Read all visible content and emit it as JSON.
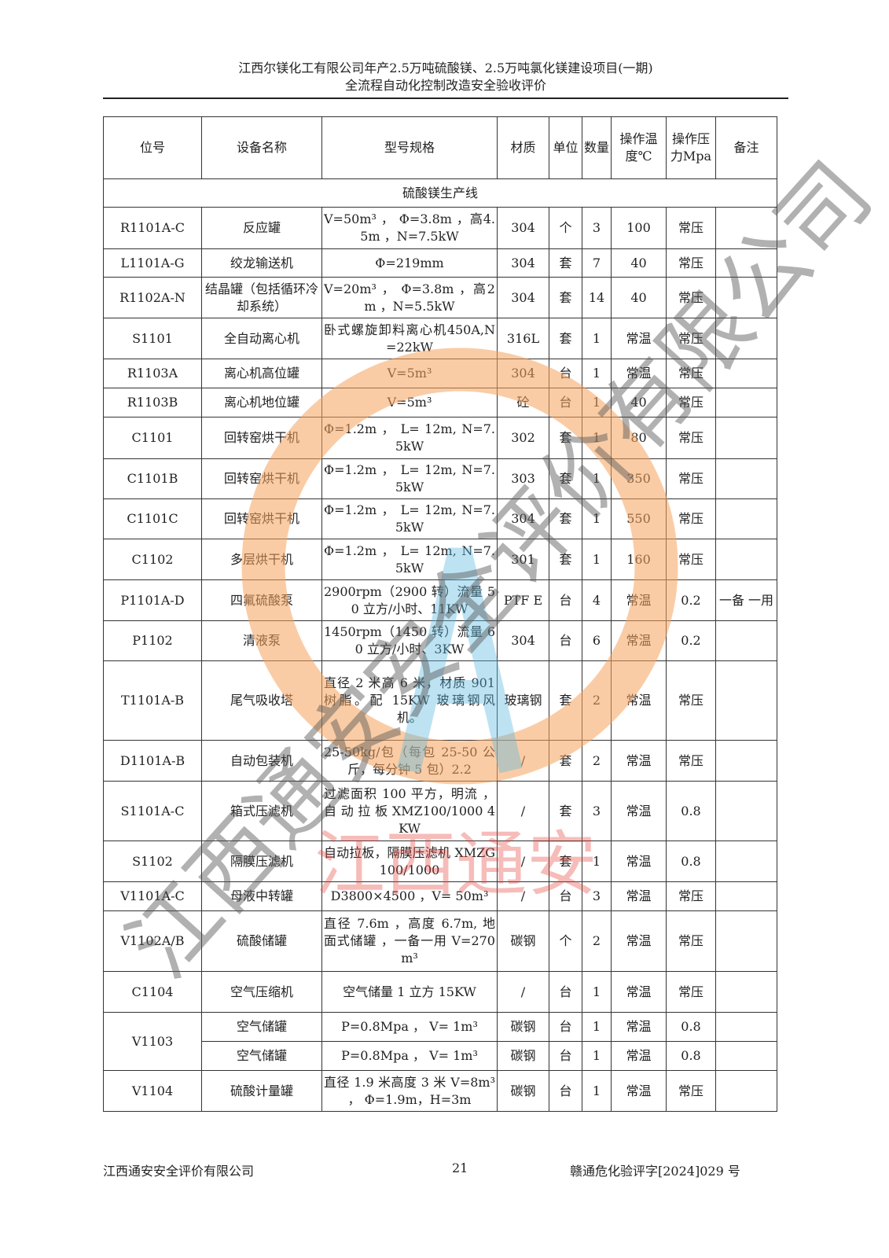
{
  "header": {
    "line1": "江西尔镁化工有限公司年产2.5万吨硫酸镁、2.5万吨氯化镁建设项目(一期)",
    "line2": "全流程自动化控制改造安全验收评价"
  },
  "table": {
    "columns": [
      "位号",
      "设备名称",
      "型号规格",
      "材质",
      "单位",
      "数量",
      "操作温度℃",
      "操作压力Mpa",
      "备注"
    ],
    "section": "硫酸镁生产线",
    "rows": [
      {
        "id": "R1101A-C",
        "name": "反应罐",
        "spec": "V=50m³ ， Φ=3.8m ，高4.5m ，N=7.5kW",
        "mat": "304",
        "unit": "个",
        "qty": "3",
        "temp": "100",
        "press": "常压",
        "note": ""
      },
      {
        "id": "L1101A-G",
        "name": "绞龙输送机",
        "spec": "Φ=219mm",
        "mat": "304",
        "unit": "套",
        "qty": "7",
        "temp": "40",
        "press": "常压",
        "note": ""
      },
      {
        "id": "R1102A-N",
        "name": "结晶罐（包括循环冷却系统）",
        "spec": "V=20m³ ， Φ=3.8m ，高2m ，N=5.5kW",
        "mat": "304",
        "unit": "套",
        "qty": "14",
        "temp": "40",
        "press": "常压",
        "note": ""
      },
      {
        "id": "S1101",
        "name": "全自动离心机",
        "spec": "卧式螺旋卸料离心机450A,N=22kW",
        "mat": "316L",
        "unit": "套",
        "qty": "1",
        "temp": "常温",
        "press": "常压",
        "note": ""
      },
      {
        "id": "R1103A",
        "name": "离心机高位罐",
        "spec": "V=5m³",
        "mat": "304",
        "unit": "台",
        "qty": "1",
        "temp": "常温",
        "press": "常压",
        "note": ""
      },
      {
        "id": "R1103B",
        "name": "离心机地位罐",
        "spec": "V=5m³",
        "mat": "砼",
        "unit": "台",
        "qty": "1",
        "temp": "40",
        "press": "常压",
        "note": ""
      },
      {
        "id": "C1101",
        "name": "回转窑烘干机",
        "spec": "Φ=1.2m ， L= 12m, N=7.5kW",
        "mat": "302",
        "unit": "套",
        "qty": "1",
        "temp": "80",
        "press": "常压",
        "note": ""
      },
      {
        "id": "C1101B",
        "name": "回转窑烘干机",
        "spec": "Φ=1.2m ， L= 12m, N=7.5kW",
        "mat": "303",
        "unit": "套",
        "qty": "1",
        "temp": "350",
        "press": "常压",
        "note": ""
      },
      {
        "id": "C1101C",
        "name": "回转窑烘干机",
        "spec": "Φ=1.2m ， L= 12m, N=7.5kW",
        "mat": "304",
        "unit": "套",
        "qty": "1",
        "temp": "550",
        "press": "常压",
        "note": ""
      },
      {
        "id": "C1102",
        "name": "多层烘干机",
        "spec": "Φ=1.2m ， L= 12m, N=7.5kW",
        "mat": "301",
        "unit": "套",
        "qty": "1",
        "temp": "160",
        "press": "常压",
        "note": ""
      },
      {
        "id": "P1101A-D",
        "name": "四氟硫酸泵",
        "spec": "2900rpm（2900 转）流量 50 立方/小时、11KW",
        "mat": "PTF E",
        "unit": "台",
        "qty": "4",
        "temp": "常温",
        "press": "0.2",
        "note": "一备 一用"
      },
      {
        "id": "P1102",
        "name": "清液泵",
        "spec": "1450rpm（1450 转）流量 60 立方/小时、3KW",
        "mat": "304",
        "unit": "台",
        "qty": "6",
        "temp": "常温",
        "press": "0.2",
        "note": ""
      },
      {
        "id": "T1101A-B",
        "name": "尾气吸收塔",
        "spec": "直径 2 米高 6 米，材质 901 树脂。配 15KW 玻璃钢风机。",
        "mat": "玻璃钢",
        "unit": "套",
        "qty": "2",
        "temp": "常温",
        "press": "常压",
        "note": ""
      },
      {
        "id": "D1101A-B",
        "name": "自动包装机",
        "spec": "25-50kg/包（每包 25-50 公斤，每分钟 5 包）2.2",
        "mat": "/",
        "unit": "套",
        "qty": "2",
        "temp": "常温",
        "press": "常压",
        "note": ""
      },
      {
        "id": "S1101A-C",
        "name": "箱式压滤机",
        "spec": "过滤面积 100 平方，明流 ， 自 动 拉 板 XMZ100/1000 4KW",
        "mat": "/",
        "unit": "套",
        "qty": "3",
        "temp": "常温",
        "press": "0.8",
        "note": ""
      },
      {
        "id": "S1102",
        "name": "隔膜压滤机",
        "spec": "自动拉板，隔膜压滤机 XMZG100/1000",
        "mat": "/",
        "unit": "套",
        "qty": "1",
        "temp": "常温",
        "press": "0.8",
        "note": ""
      },
      {
        "id": "V1101A-C",
        "name": "母液中转罐",
        "spec": "D3800×4500 ，V= 50m³",
        "mat": "/",
        "unit": "台",
        "qty": "3",
        "temp": "常温",
        "press": "常压",
        "note": ""
      },
      {
        "id": "V1102A/B",
        "name": "硫酸储罐",
        "spec": "直径 7.6m ，高度 6.7m, 地面式储罐 ，一备一用 V=270 m³",
        "mat": "碳钢",
        "unit": "个",
        "qty": "2",
        "temp": "常温",
        "press": "常压",
        "note": ""
      },
      {
        "id": "C1104",
        "name": "空气压缩机",
        "spec": "空气储量 1 立方 15KW",
        "mat": "/",
        "unit": "台",
        "qty": "1",
        "temp": "常温",
        "press": "常压",
        "note": ""
      },
      {
        "id": "V1103",
        "name": "空气储罐",
        "spec": "P=0.8Mpa ， V= 1m³",
        "mat": "碳钢",
        "unit": "台",
        "qty": "1",
        "temp": "常温",
        "press": "0.8",
        "note": ""
      },
      {
        "id": "",
        "name": "空气储罐",
        "spec": "P=0.8Mpa ， V= 1m³",
        "mat": "碳钢",
        "unit": "台",
        "qty": "1",
        "temp": "常温",
        "press": "0.8",
        "note": ""
      },
      {
        "id": "V1104",
        "name": "硫酸计量罐",
        "spec": "直径 1.9 米高度 3 米 V=8m³ ， Φ=1.9m，H=3m",
        "mat": "碳钢",
        "unit": "台",
        "qty": "1",
        "temp": "常温",
        "press": "常压",
        "note": ""
      }
    ]
  },
  "footer": {
    "company": "江西通安安全评价有限公司",
    "page": "21",
    "doc_no": "赣通危化验评字[2024]029 号"
  },
  "watermark": {
    "text_diagonal": "江西通安安全评价有限公司",
    "text_center": "江西通安",
    "colors": {
      "ring": "#f5a25d",
      "center_text": "#e8423a",
      "letter": "#5bb8e0",
      "diagonal": "#666666"
    }
  }
}
